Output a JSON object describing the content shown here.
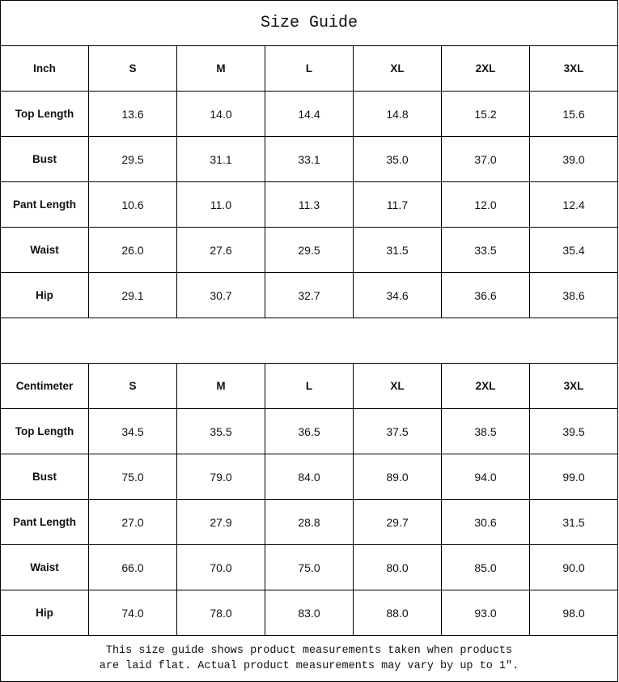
{
  "title": "Size Guide",
  "sizes": [
    "S",
    "M",
    "L",
    "XL",
    "2XL",
    "3XL"
  ],
  "inch": {
    "unit_label": "Inch",
    "rows": [
      {
        "label": "Top Length",
        "values": [
          "13.6",
          "14.0",
          "14.4",
          "14.8",
          "15.2",
          "15.6"
        ]
      },
      {
        "label": "Bust",
        "values": [
          "29.5",
          "31.1",
          "33.1",
          "35.0",
          "37.0",
          "39.0"
        ]
      },
      {
        "label": "Pant Length",
        "values": [
          "10.6",
          "11.0",
          "11.3",
          "11.7",
          "12.0",
          "12.4"
        ]
      },
      {
        "label": "Waist",
        "values": [
          "26.0",
          "27.6",
          "29.5",
          "31.5",
          "33.5",
          "35.4"
        ]
      },
      {
        "label": "Hip",
        "values": [
          "29.1",
          "30.7",
          "32.7",
          "34.6",
          "36.6",
          "38.6"
        ]
      }
    ]
  },
  "cm": {
    "unit_label": "Centimeter",
    "rows": [
      {
        "label": "Top Length",
        "values": [
          "34.5",
          "35.5",
          "36.5",
          "37.5",
          "38.5",
          "39.5"
        ]
      },
      {
        "label": "Bust",
        "values": [
          "75.0",
          "79.0",
          "84.0",
          "89.0",
          "94.0",
          "99.0"
        ]
      },
      {
        "label": "Pant Length",
        "values": [
          "27.0",
          "27.9",
          "28.8",
          "29.7",
          "30.6",
          "31.5"
        ]
      },
      {
        "label": "Waist",
        "values": [
          "66.0",
          "70.0",
          "75.0",
          "80.0",
          "85.0",
          "90.0"
        ]
      },
      {
        "label": "Hip",
        "values": [
          "74.0",
          "78.0",
          "83.0",
          "88.0",
          "93.0",
          "98.0"
        ]
      }
    ]
  },
  "note": {
    "line1": "This size guide shows product measurements taken when products",
    "line2": "are laid flat. Actual product measurements may vary by up to 1″."
  }
}
